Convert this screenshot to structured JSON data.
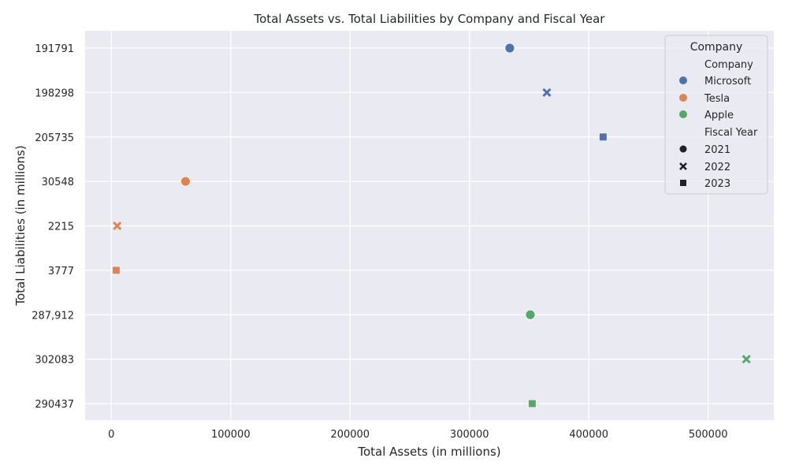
{
  "chart_data": {
    "type": "scatter",
    "title": "Total Assets vs. Total Liabilities by Company and Fiscal Year",
    "xlabel": "Total Assets (in millions)",
    "ylabel": "Total Liabilities (in millions)",
    "xlim": [
      -22000,
      555000
    ],
    "x_ticks": [
      0,
      100000,
      200000,
      300000,
      400000,
      500000
    ],
    "y_categories": [
      "191791",
      "198298",
      "205735",
      "30548",
      "2215",
      "3777",
      "287,912",
      "302083",
      "290437"
    ],
    "grid": true,
    "legend_position": "top-right",
    "legend": {
      "title": "Company",
      "hue_header": "Company",
      "style_header": "Fiscal Year",
      "companies": [
        {
          "name": "Microsoft",
          "color": "#4c72b0"
        },
        {
          "name": "Tesla",
          "color": "#dd8452"
        },
        {
          "name": "Apple",
          "color": "#55a868"
        }
      ],
      "years": [
        {
          "name": "2021",
          "marker": "circle"
        },
        {
          "name": "2022",
          "marker": "x"
        },
        {
          "name": "2023",
          "marker": "square"
        }
      ]
    },
    "points": [
      {
        "company": "Microsoft",
        "year": "2021",
        "x": 333779,
        "y": "191791"
      },
      {
        "company": "Microsoft",
        "year": "2022",
        "x": 364840,
        "y": "198298"
      },
      {
        "company": "Microsoft",
        "year": "2023",
        "x": 411976,
        "y": "205735"
      },
      {
        "company": "Tesla",
        "year": "2021",
        "x": 62131,
        "y": "30548"
      },
      {
        "company": "Tesla",
        "year": "2022",
        "x": 4900,
        "y": "2215"
      },
      {
        "company": "Tesla",
        "year": "2023",
        "x": 4000,
        "y": "3777"
      },
      {
        "company": "Apple",
        "year": "2021",
        "x": 351002,
        "y": "287,912"
      },
      {
        "company": "Apple",
        "year": "2022",
        "x": 532000,
        "y": "302083"
      },
      {
        "company": "Apple",
        "year": "2023",
        "x": 352583,
        "y": "290437"
      }
    ]
  }
}
